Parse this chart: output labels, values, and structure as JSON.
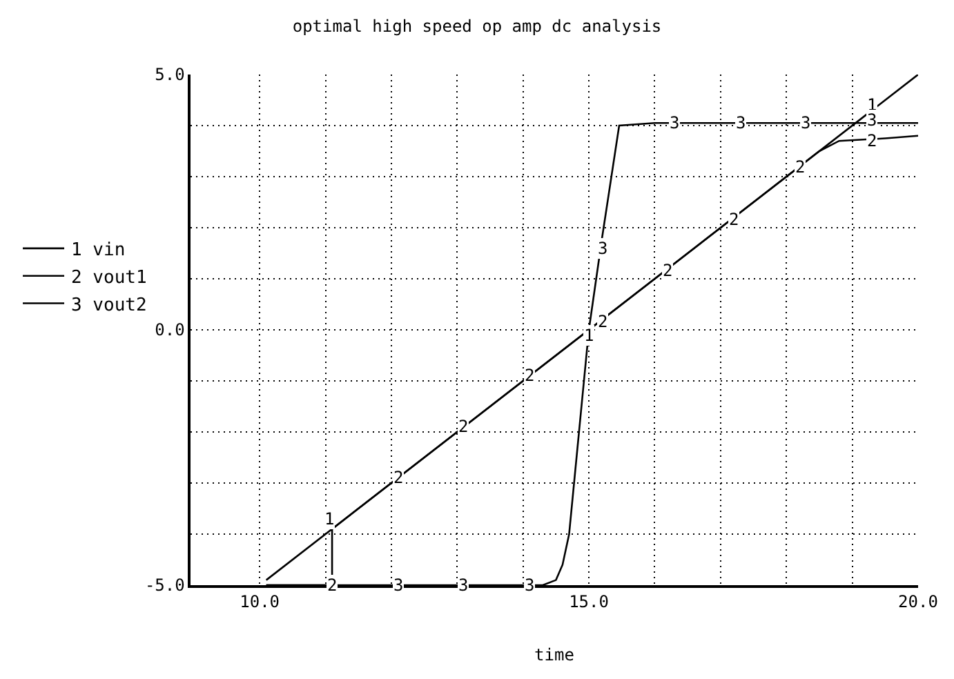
{
  "chart_data": {
    "type": "line",
    "title": "optimal high speed op amp dc analysis",
    "xlabel": "time",
    "xlim": [
      8.95,
      20
    ],
    "ylim": [
      -5,
      5
    ],
    "xticks": [
      {
        "value": 10,
        "label": "10.0"
      },
      {
        "value": 11,
        "label": null
      },
      {
        "value": 12,
        "label": null
      },
      {
        "value": 13,
        "label": null
      },
      {
        "value": 14,
        "label": null
      },
      {
        "value": 15,
        "label": "15.0"
      },
      {
        "value": 16,
        "label": null
      },
      {
        "value": 17,
        "label": null
      },
      {
        "value": 18,
        "label": null
      },
      {
        "value": 19,
        "label": null
      },
      {
        "value": 20,
        "label": "20.0"
      }
    ],
    "yticks": [
      {
        "value": -5,
        "label": "-5.0"
      },
      {
        "value": -4,
        "label": null
      },
      {
        "value": -3,
        "label": null
      },
      {
        "value": -2,
        "label": null
      },
      {
        "value": -1,
        "label": null
      },
      {
        "value": 0,
        "label": "0.0"
      },
      {
        "value": 1,
        "label": null
      },
      {
        "value": 2,
        "label": null
      },
      {
        "value": 3,
        "label": null
      },
      {
        "value": 4,
        "label": null
      },
      {
        "value": 5,
        "label": "5.0"
      }
    ],
    "grid": true,
    "legend": "left",
    "marker": "none",
    "line_style": "solid",
    "series": [
      {
        "name": "1 vin",
        "color": "#000000",
        "x": [
          10.1,
          20
        ],
        "values": [
          -4.9,
          5
        ]
      },
      {
        "name": "2 vout1",
        "color": "#000000",
        "x": [
          10.1,
          11.1,
          11.1,
          18.5,
          18.8,
          19.5,
          20
        ],
        "values": [
          -5,
          -5,
          -3.9,
          3.5,
          3.7,
          3.75,
          3.8
        ]
      },
      {
        "name": "3 vout2",
        "color": "#000000",
        "x": [
          10.1,
          14.3,
          14.5,
          14.6,
          14.7,
          15.0,
          15.2,
          15.46,
          16.0,
          20
        ],
        "values": [
          -5,
          -5,
          -4.9,
          -4.6,
          -4.0,
          0,
          1.8,
          4.0,
          4.05,
          4.05
        ]
      }
    ],
    "annotations": [
      {
        "text": "1",
        "x": 11.05,
        "y": -3.7
      },
      {
        "text": "1",
        "x": 15.0,
        "y": -0.1
      },
      {
        "text": "1",
        "x": 19.3,
        "y": 4.4
      },
      {
        "text": "2",
        "x": 11.1,
        "y": -5
      },
      {
        "text": "2",
        "x": 12.1,
        "y": -2.9
      },
      {
        "text": "2",
        "x": 13.1,
        "y": -1.9
      },
      {
        "text": "2",
        "x": 14.1,
        "y": -0.9
      },
      {
        "text": "2",
        "x": 15.2,
        "y": 0.15
      },
      {
        "text": "2",
        "x": 16.2,
        "y": 1.15
      },
      {
        "text": "2",
        "x": 17.2,
        "y": 2.15
      },
      {
        "text": "2",
        "x": 18.2,
        "y": 3.2
      },
      {
        "text": "2",
        "x": 19.3,
        "y": 3.7
      },
      {
        "text": "3",
        "x": 12.1,
        "y": -5
      },
      {
        "text": "3",
        "x": 13.1,
        "y": -5
      },
      {
        "text": "3",
        "x": 14.1,
        "y": -5
      },
      {
        "text": "3",
        "x": 15.2,
        "y": 1.6
      },
      {
        "text": "3",
        "x": 16.3,
        "y": 4.05
      },
      {
        "text": "3",
        "x": 17.3,
        "y": 4.05
      },
      {
        "text": "3",
        "x": 18.3,
        "y": 4.05
      },
      {
        "text": "3",
        "x": 19.3,
        "y": 4.1
      }
    ]
  }
}
